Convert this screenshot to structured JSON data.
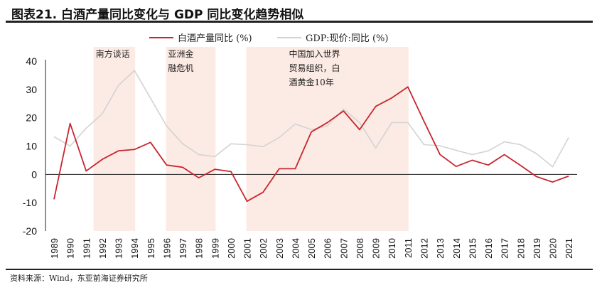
{
  "title": "图表21. 白酒产量同比变化与 GDP 同比变化趋势相似",
  "source": "资料来源：Wind，东亚前海证券研究所",
  "chart_data": {
    "type": "line",
    "title": "图表21. 白酒产量同比变化与 GDP 同比变化趋势相似",
    "xlabel": "",
    "ylabel": "",
    "ylim": [
      -20,
      40
    ],
    "yticks": [
      -20,
      -10,
      0,
      10,
      20,
      30,
      40
    ],
    "grid": false,
    "legend_position": "top-right",
    "categories": [
      "1989",
      "1990",
      "1991",
      "1992",
      "1993",
      "1994",
      "1995",
      "1996",
      "1997",
      "1998",
      "1999",
      "2000",
      "2001",
      "2002",
      "2003",
      "2004",
      "2005",
      "2006",
      "2007",
      "2008",
      "2009",
      "2010",
      "2011",
      "2012",
      "2013",
      "2014",
      "2015",
      "2016",
      "2017",
      "2018",
      "2019",
      "2020",
      "2021"
    ],
    "series": [
      {
        "name": "白酒产量同比 (%)",
        "color": "#c8262f",
        "values": [
          -8.8,
          18,
          1.2,
          5.3,
          8.3,
          8.8,
          11.3,
          3.3,
          2.5,
          -1.2,
          1.8,
          1.0,
          -9.5,
          -6.3,
          2,
          2,
          15,
          18.3,
          22.4,
          15.8,
          24,
          27,
          30.9,
          18.8,
          7,
          2.8,
          5,
          3.3,
          7,
          3.2,
          -0.8,
          -2.7,
          -0.6
        ]
      },
      {
        "name": "GDP:现价:同比 (%)",
        "color": "#d3d3d3",
        "values": [
          13.3,
          10,
          16.3,
          21.4,
          31.4,
          36.7,
          26.9,
          17.1,
          10.8,
          7,
          6.3,
          10.8,
          10.5,
          9.8,
          13,
          17.8,
          15.8,
          17.1,
          23.1,
          18.3,
          9.3,
          18.3,
          18.3,
          10.5,
          10.1,
          8.5,
          7,
          8.3,
          11.5,
          10.5,
          7.3,
          2.7,
          13
        ]
      }
    ],
    "shaded_periods": [
      {
        "from": "1991.5",
        "to": "1994",
        "label_lines": [
          "南方谈话"
        ],
        "color": "#fcebe4"
      },
      {
        "from": "1996",
        "to": "1999",
        "label_lines": [
          "亚洲金",
          "融危机"
        ],
        "color": "#fcebe4"
      },
      {
        "from": "2001",
        "to": "2011",
        "label_lines": [
          "中国加入世界",
          "贸易组织，白",
          "酒黄金10年"
        ],
        "color": "#fcebe4"
      }
    ]
  }
}
